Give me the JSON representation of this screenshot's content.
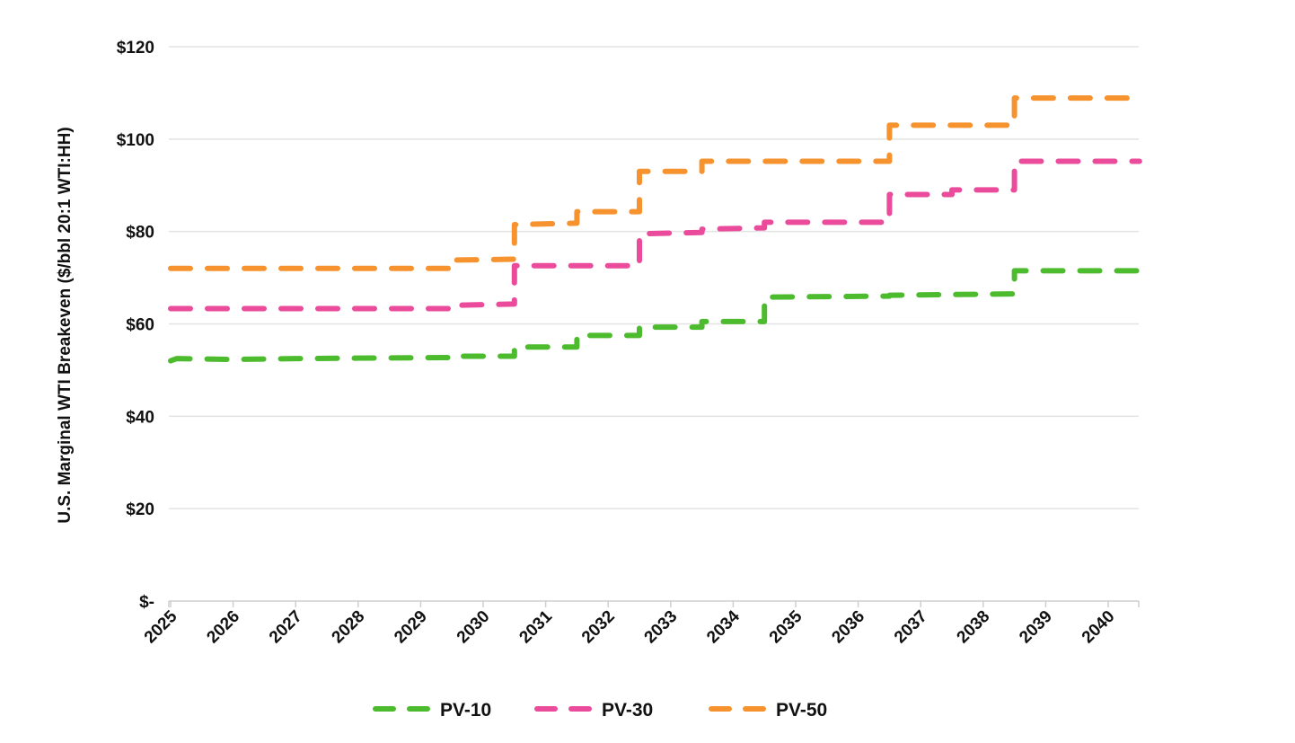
{
  "chart_data": {
    "type": "line",
    "title": "",
    "xlabel": "",
    "ylabel": "U.S. Marginal WTI Breakeven ($/bbl 20:1 WTI:HH)",
    "ylim": [
      0,
      120
    ],
    "xlim": [
      2025,
      2040.5
    ],
    "grid": true,
    "legend_position": "bottom",
    "x_ticks": [
      "2025",
      "2026",
      "2027",
      "2028",
      "2029",
      "2030",
      "2031",
      "2032",
      "2033",
      "2034",
      "2035",
      "2036",
      "2037",
      "2038",
      "2039",
      "2040"
    ],
    "y_ticks": [
      {
        "value": 0,
        "label": "$-"
      },
      {
        "value": 20,
        "label": "$20"
      },
      {
        "value": 40,
        "label": "$40"
      },
      {
        "value": 60,
        "label": "$60"
      },
      {
        "value": 80,
        "label": "$80"
      },
      {
        "value": 100,
        "label": "$100"
      },
      {
        "value": 120,
        "label": "$120"
      }
    ],
    "series": [
      {
        "name": "PV-10",
        "color": "#4dbb2e",
        "style": "dashed-step",
        "points": [
          [
            2025,
            52
          ],
          [
            2025.1,
            52.5
          ],
          [
            2026,
            52.3
          ],
          [
            2027,
            52.5
          ],
          [
            2029.5,
            52.7
          ],
          [
            2029.5,
            53
          ],
          [
            2030.5,
            53
          ],
          [
            2030.5,
            55
          ],
          [
            2031.5,
            55
          ],
          [
            2031.5,
            57.5
          ],
          [
            2032.5,
            57.5
          ],
          [
            2032.5,
            59.3
          ],
          [
            2033.5,
            59.3
          ],
          [
            2033.5,
            60.5
          ],
          [
            2034.5,
            60.5
          ],
          [
            2034.5,
            65.8
          ],
          [
            2036.5,
            66
          ],
          [
            2036.5,
            66.2
          ],
          [
            2038.5,
            66.5
          ],
          [
            2038.5,
            71.5
          ],
          [
            2040.5,
            71.5
          ]
        ]
      },
      {
        "name": "PV-30",
        "color": "#ea4c9b",
        "style": "dashed-step",
        "points": [
          [
            2025,
            63.3
          ],
          [
            2029.5,
            63.3
          ],
          [
            2029.5,
            64
          ],
          [
            2030.5,
            64.3
          ],
          [
            2030.5,
            72.6
          ],
          [
            2032.5,
            72.6
          ],
          [
            2032.5,
            79.5
          ],
          [
            2033.5,
            79.8
          ],
          [
            2033.5,
            80.5
          ],
          [
            2034.5,
            80.8
          ],
          [
            2034.5,
            82
          ],
          [
            2036.5,
            82
          ],
          [
            2036.5,
            88
          ],
          [
            2037.5,
            88
          ],
          [
            2037.5,
            89
          ],
          [
            2038.5,
            89
          ],
          [
            2038.5,
            95.2
          ],
          [
            2040.5,
            95.2
          ]
        ]
      },
      {
        "name": "PV-50",
        "color": "#f7932f",
        "style": "dashed-step",
        "points": [
          [
            2025,
            72
          ],
          [
            2029.5,
            72
          ],
          [
            2029.5,
            73.8
          ],
          [
            2030.5,
            74
          ],
          [
            2030.5,
            81.5
          ],
          [
            2031.5,
            81.8
          ],
          [
            2031.5,
            84.3
          ],
          [
            2032.5,
            84.3
          ],
          [
            2032.5,
            93
          ],
          [
            2033.5,
            93
          ],
          [
            2033.5,
            95.2
          ],
          [
            2036.5,
            95.2
          ],
          [
            2036.5,
            103
          ],
          [
            2038.5,
            103
          ],
          [
            2038.5,
            108.9
          ],
          [
            2040.5,
            108.9
          ]
        ]
      }
    ]
  }
}
